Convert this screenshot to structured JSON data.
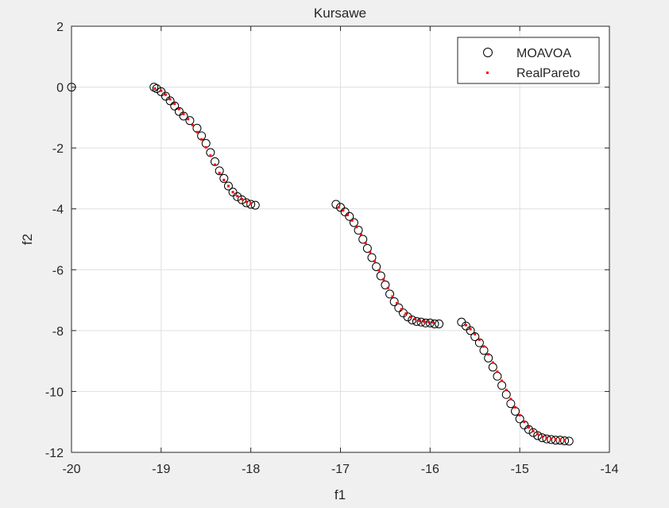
{
  "chart_data": {
    "type": "scatter",
    "title": "Kursawe",
    "xlabel": "f1",
    "ylabel": "f2",
    "xlim": [
      -20,
      -14
    ],
    "ylim": [
      -12,
      2
    ],
    "xticks": [
      -20,
      -19,
      -18,
      -17,
      -16,
      -15,
      -14
    ],
    "yticks": [
      2,
      0,
      -2,
      -4,
      -6,
      -8,
      -10,
      -12
    ],
    "xtick_labels": [
      "-20",
      "-19",
      "-18",
      "-17",
      "-16",
      "-15",
      "-14"
    ],
    "ytick_labels": [
      "2",
      "0",
      "-2",
      "-4",
      "-6",
      "-8",
      "-10",
      "-12"
    ],
    "grid": true,
    "legend_position": "top-right",
    "legend": [
      "MOAVOA",
      "RealPareto"
    ],
    "colors": {
      "moavoa": "#000000",
      "realpareto": "#ff0000",
      "axes_bg": "#ffffff",
      "figure_bg": "#f0f0f0",
      "grid": "#dfdfdf"
    },
    "series": [
      {
        "name": "MOAVOA",
        "marker": "circle",
        "x": [
          -20.0,
          -19.08,
          -19.05,
          -19.0,
          -18.95,
          -18.9,
          -18.85,
          -18.8,
          -18.75,
          -18.68,
          -18.6,
          -18.55,
          -18.5,
          -18.45,
          -18.4,
          -18.35,
          -18.3,
          -18.25,
          -18.2,
          -18.15,
          -18.1,
          -18.05,
          -18.0,
          -17.95,
          -17.05,
          -17.0,
          -16.95,
          -16.9,
          -16.85,
          -16.8,
          -16.75,
          -16.7,
          -16.65,
          -16.6,
          -16.55,
          -16.5,
          -16.45,
          -16.4,
          -16.35,
          -16.3,
          -16.25,
          -16.2,
          -16.15,
          -16.1,
          -16.05,
          -16.0,
          -15.95,
          -15.9,
          -15.65,
          -15.6,
          -15.55,
          -15.5,
          -15.45,
          -15.4,
          -15.35,
          -15.3,
          -15.25,
          -15.2,
          -15.15,
          -15.1,
          -15.05,
          -15.0,
          -14.95,
          -14.9,
          -14.85,
          -14.8,
          -14.75,
          -14.7,
          -14.65,
          -14.6,
          -14.55,
          -14.5,
          -14.45
        ],
        "y": [
          0.0,
          0.0,
          -0.05,
          -0.15,
          -0.3,
          -0.45,
          -0.62,
          -0.8,
          -0.95,
          -1.1,
          -1.35,
          -1.6,
          -1.85,
          -2.15,
          -2.45,
          -2.75,
          -3.0,
          -3.25,
          -3.45,
          -3.6,
          -3.7,
          -3.8,
          -3.85,
          -3.88,
          -3.85,
          -3.95,
          -4.1,
          -4.25,
          -4.45,
          -4.7,
          -5.0,
          -5.3,
          -5.6,
          -5.9,
          -6.2,
          -6.5,
          -6.8,
          -7.05,
          -7.25,
          -7.42,
          -7.55,
          -7.65,
          -7.7,
          -7.72,
          -7.75,
          -7.75,
          -7.78,
          -7.78,
          -7.72,
          -7.85,
          -8.0,
          -8.2,
          -8.4,
          -8.65,
          -8.9,
          -9.2,
          -9.5,
          -9.8,
          -10.1,
          -10.4,
          -10.65,
          -10.9,
          -11.1,
          -11.25,
          -11.35,
          -11.45,
          -11.52,
          -11.56,
          -11.58,
          -11.6,
          -11.6,
          -11.62,
          -11.63
        ]
      },
      {
        "name": "RealPareto",
        "marker": "dot",
        "x": [
          -19.07,
          -19.0,
          -18.95,
          -18.9,
          -18.85,
          -18.8,
          -18.75,
          -18.7,
          -18.65,
          -18.6,
          -18.55,
          -18.5,
          -18.45,
          -18.4,
          -18.35,
          -18.3,
          -18.25,
          -18.2,
          -18.15,
          -18.1,
          -18.05,
          -18.0,
          -17.02,
          -16.97,
          -16.92,
          -16.87,
          -16.82,
          -16.77,
          -16.72,
          -16.67,
          -16.62,
          -16.57,
          -16.52,
          -16.47,
          -16.42,
          -16.37,
          -16.32,
          -16.27,
          -16.22,
          -16.17,
          -16.12,
          -16.07,
          -16.02,
          -15.97,
          -15.6,
          -15.55,
          -15.5,
          -15.45,
          -15.4,
          -15.35,
          -15.3,
          -15.25,
          -15.2,
          -15.15,
          -15.1,
          -15.05,
          -15.0,
          -14.95,
          -14.9,
          -14.85,
          -14.8,
          -14.75,
          -14.7,
          -14.65,
          -14.6,
          -14.55,
          -14.5
        ],
        "y": [
          -0.05,
          -0.12,
          -0.25,
          -0.4,
          -0.55,
          -0.72,
          -0.88,
          -1.05,
          -1.25,
          -1.48,
          -1.72,
          -1.98,
          -2.25,
          -2.55,
          -2.82,
          -3.05,
          -3.25,
          -3.45,
          -3.58,
          -3.68,
          -3.76,
          -3.82,
          -3.95,
          -4.05,
          -4.2,
          -4.38,
          -4.6,
          -4.85,
          -5.12,
          -5.42,
          -5.72,
          -6.02,
          -6.32,
          -6.6,
          -6.88,
          -7.1,
          -7.3,
          -7.44,
          -7.55,
          -7.62,
          -7.68,
          -7.7,
          -7.72,
          -7.73,
          -7.82,
          -7.95,
          -8.12,
          -8.3,
          -8.52,
          -8.78,
          -9.05,
          -9.35,
          -9.65,
          -9.95,
          -10.25,
          -10.52,
          -10.78,
          -11.0,
          -11.18,
          -11.3,
          -11.4,
          -11.48,
          -11.52,
          -11.55,
          -11.57,
          -11.58,
          -11.6
        ]
      }
    ]
  }
}
